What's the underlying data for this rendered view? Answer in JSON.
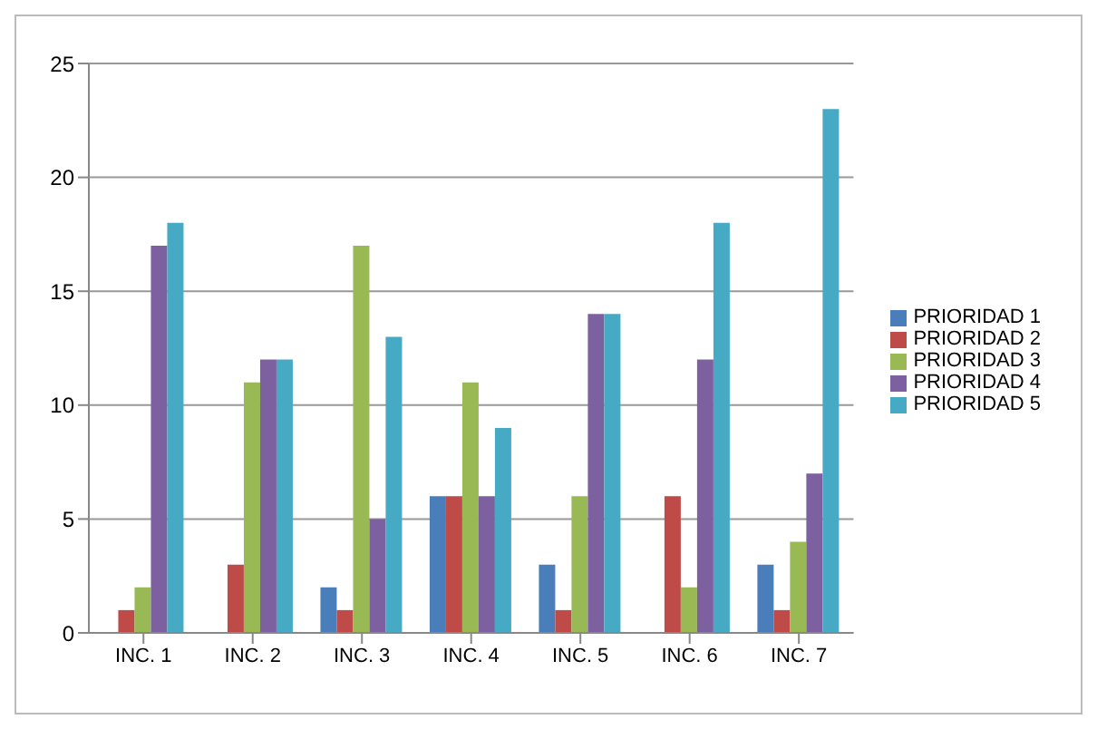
{
  "chart_data": {
    "type": "bar",
    "categories": [
      "INC. 1",
      "INC. 2",
      "INC. 3",
      "INC. 4",
      "INC. 5",
      "INC. 6",
      "INC. 7"
    ],
    "series": [
      {
        "name": "PRIORIDAD 1",
        "color": "#4a7ebb",
        "values": [
          0,
          0,
          2,
          6,
          3,
          0,
          3
        ]
      },
      {
        "name": "PRIORIDAD 2",
        "color": "#be4b48",
        "values": [
          1,
          3,
          1,
          6,
          1,
          6,
          1
        ]
      },
      {
        "name": "PRIORIDAD 3",
        "color": "#98b954",
        "values": [
          2,
          11,
          17,
          11,
          6,
          2,
          4
        ]
      },
      {
        "name": "PRIORIDAD 4",
        "color": "#7d60a0",
        "values": [
          17,
          12,
          5,
          6,
          14,
          12,
          7
        ]
      },
      {
        "name": "PRIORIDAD 5",
        "color": "#46aac5",
        "values": [
          18,
          12,
          13,
          9,
          14,
          18,
          23
        ]
      }
    ],
    "ylim": [
      0,
      25
    ],
    "yticks": [
      0,
      5,
      10,
      15,
      20,
      25
    ],
    "grid": "y",
    "legend": "right"
  }
}
